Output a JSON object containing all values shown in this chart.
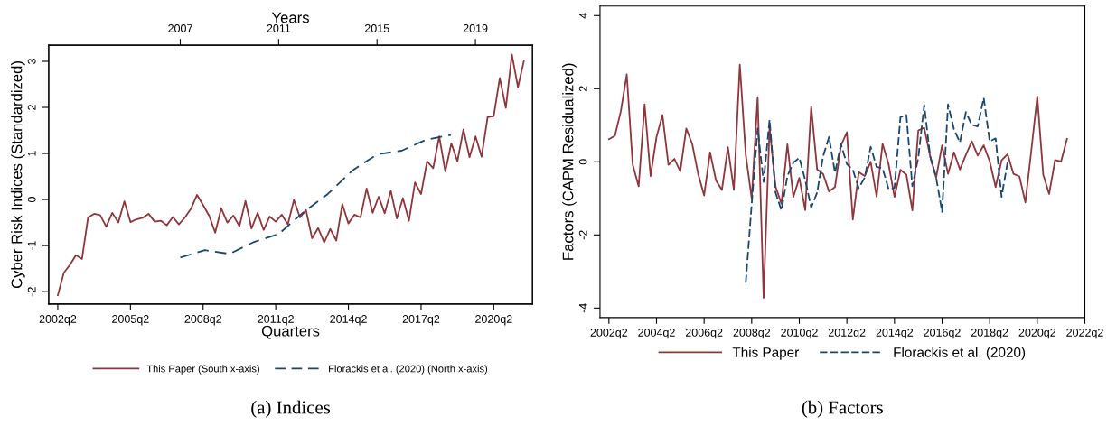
{
  "chart_data": [
    {
      "type": "line",
      "title": "(a) Indices",
      "xlabel": "Quarters",
      "x2label": "Years",
      "ylabel": "Cyber Risk Indices (Standardized)",
      "categories": [
        "2002q2",
        null,
        null,
        null,
        null,
        null,
        null,
        null,
        null,
        null,
        null,
        null,
        "2005q2",
        null,
        null,
        null,
        null,
        null,
        null,
        null,
        null,
        null,
        null,
        null,
        "2008q2",
        null,
        null,
        null,
        null,
        null,
        null,
        null,
        null,
        null,
        null,
        null,
        "2011q2",
        null,
        null,
        null,
        null,
        null,
        null,
        null,
        null,
        null,
        null,
        null,
        "2014q2",
        null,
        null,
        null,
        null,
        null,
        null,
        null,
        null,
        null,
        null,
        null,
        "2017q2",
        null,
        null,
        null,
        null,
        null,
        null,
        null,
        null,
        null,
        null,
        null,
        "2020q2",
        null,
        null,
        null,
        null,
        null
      ],
      "series": [
        {
          "name": "This Paper (South x-axis)",
          "color": "#90353b",
          "line_style": "solid",
          "values": [
            -2.08,
            -1.59,
            -1.42,
            -1.21,
            -1.29,
            -0.39,
            -0.31,
            -0.34,
            -0.59,
            -0.29,
            -0.5,
            -0.04,
            -0.49,
            -0.43,
            -0.4,
            -0.31,
            -0.48,
            -0.46,
            -0.56,
            -0.38,
            -0.54,
            -0.39,
            -0.2,
            0.1,
            -0.12,
            -0.35,
            -0.72,
            -0.19,
            -0.5,
            -0.35,
            -0.58,
            -0.03,
            -0.63,
            -0.29,
            -0.66,
            -0.37,
            -0.48,
            -0.33,
            -0.54,
            -0.01,
            -0.39,
            -0.23,
            -0.84,
            -0.62,
            -0.93,
            -0.64,
            -0.89,
            -0.1,
            -0.52,
            -0.33,
            -0.39,
            0.24,
            -0.29,
            0.06,
            -0.3,
            0.19,
            -0.41,
            0.03,
            -0.46,
            0.37,
            0.12,
            0.83,
            0.68,
            1.37,
            0.61,
            1.22,
            0.83,
            1.52,
            0.92,
            1.37,
            0.93,
            1.79,
            1.81,
            2.64,
            1.99,
            3.15,
            2.44,
            3.02
          ]
        },
        {
          "name": "Florackis et al. (2020) (North x-axis)",
          "color": "#1a476f",
          "line_style": "dashed",
          "axis": "x2",
          "x": [
            2007,
            2008,
            2009,
            2010,
            2011,
            2012,
            2013,
            2014,
            2015,
            2016,
            2017,
            2018
          ],
          "values": [
            -1.26,
            -1.1,
            -1.18,
            -0.92,
            -0.75,
            -0.28,
            0.12,
            0.63,
            0.98,
            1.06,
            1.3,
            1.4
          ]
        }
      ],
      "x2lim": [
        2001.65,
        2021.32
      ],
      "x2ticks": [
        2007,
        2011,
        2015,
        2019
      ],
      "ylim": [
        -2.27,
        3.35
      ],
      "yticks": [
        -2,
        -1,
        0,
        1,
        2,
        3
      ],
      "grid": false,
      "legend": "bottom"
    },
    {
      "type": "line",
      "title": "(b) Factors",
      "ylabel": "Factors (CAPM Residualized)",
      "categories": [
        "2002q2",
        null,
        null,
        null,
        null,
        null,
        null,
        null,
        "2004q2",
        null,
        null,
        null,
        null,
        null,
        null,
        null,
        "2006q2",
        null,
        null,
        null,
        null,
        null,
        null,
        null,
        "2008q2",
        null,
        null,
        null,
        null,
        null,
        null,
        null,
        "2010q2",
        null,
        null,
        null,
        null,
        null,
        null,
        null,
        "2012q2",
        null,
        null,
        null,
        null,
        null,
        null,
        null,
        "2014q2",
        null,
        null,
        null,
        null,
        null,
        null,
        null,
        "2016q2",
        null,
        null,
        null,
        null,
        null,
        null,
        null,
        "2018q2",
        null,
        null,
        null,
        null,
        null,
        null,
        null,
        "2020q2",
        null,
        null,
        null,
        null,
        null,
        null,
        null,
        "2022q2"
      ],
      "series": [
        {
          "name": "This Paper",
          "color": "#90353b",
          "line_style": "solid",
          "values": [
            0.62,
            0.71,
            1.38,
            2.39,
            -0.08,
            -0.67,
            1.57,
            -0.39,
            0.68,
            1.28,
            -0.08,
            0.08,
            -0.26,
            0.91,
            0.49,
            -0.33,
            -0.92,
            0.26,
            -0.51,
            -0.77,
            0.4,
            -0.77,
            2.66,
            0.19,
            -1.0,
            1.77,
            -3.72,
            0.95,
            -0.67,
            -1.15,
            0.48,
            -0.96,
            -0.44,
            -1.32,
            1.51,
            -0.21,
            -0.33,
            -0.81,
            -0.69,
            0.44,
            0.81,
            -1.58,
            -0.28,
            -0.39,
            0.0,
            -0.95,
            0.49,
            -0.06,
            -0.96,
            -0.22,
            -0.35,
            -1.33,
            0.86,
            0.93,
            0.15,
            -0.43,
            0.45,
            -0.33,
            0.26,
            -0.21,
            0.19,
            0.56,
            0.17,
            0.45,
            0.02,
            -0.69,
            0.04,
            0.21,
            -0.33,
            -0.4,
            -1.11,
            0.31,
            1.79,
            -0.35,
            -0.88,
            0.05,
            0.01,
            0.63,
            null,
            null,
            null
          ]
        },
        {
          "name": "Florackis et al. (2020)",
          "color": "#1a476f",
          "line_style": "dashed",
          "values": [
            null,
            null,
            null,
            null,
            null,
            null,
            null,
            null,
            null,
            null,
            null,
            null,
            null,
            null,
            null,
            null,
            null,
            null,
            null,
            null,
            null,
            null,
            null,
            -3.31,
            -1.15,
            0.91,
            -0.55,
            1.15,
            -0.84,
            -1.33,
            -0.39,
            -0.02,
            0.11,
            -0.5,
            -1.25,
            -0.84,
            0.15,
            0.68,
            -0.3,
            0.48,
            -0.06,
            -0.22,
            -0.72,
            -0.43,
            0.41,
            -0.14,
            -0.18,
            -0.74,
            -0.72,
            1.22,
            1.28,
            -0.67,
            0.11,
            1.55,
            0.15,
            -0.43,
            -1.37,
            1.57,
            0.89,
            0.53,
            1.36,
            1.01,
            0.97,
            1.75,
            0.56,
            0.64,
            -0.96,
            -0.02,
            null,
            null,
            null,
            null,
            null,
            null,
            null,
            null,
            null,
            null,
            null,
            null,
            null
          ]
        }
      ],
      "ylim": [
        -4.26,
        4.26
      ],
      "yticks": [
        -4,
        -2,
        0,
        2,
        4
      ],
      "grid": false,
      "legend": "bottom"
    }
  ]
}
